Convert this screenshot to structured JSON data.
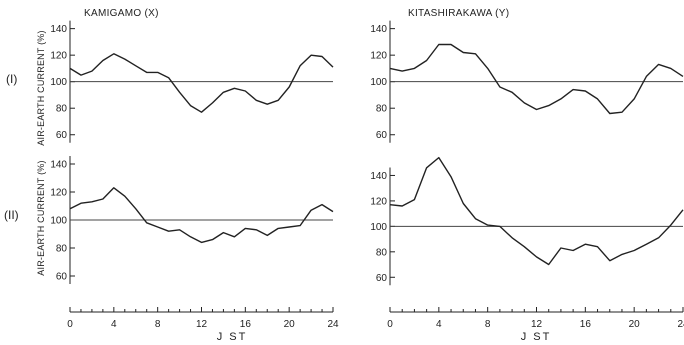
{
  "chart_data": [
    {
      "type": "line",
      "title": "KAMIGAMO (X)",
      "row_label": "(I)",
      "ylabel": "AIR-EARTH CURRENT (%)",
      "ylim": [
        50,
        145
      ],
      "yticks": [
        60,
        80,
        100,
        120,
        140
      ],
      "xlim": [
        0,
        24
      ],
      "reference_line": 100,
      "x": [
        0,
        1,
        2,
        3,
        4,
        5,
        6,
        7,
        8,
        9,
        10,
        11,
        12,
        13,
        14,
        15,
        16,
        17,
        18,
        19,
        20,
        21,
        22,
        23,
        24
      ],
      "values": [
        110,
        105,
        108,
        116,
        121,
        117,
        112,
        107,
        107,
        103,
        92,
        82,
        77,
        84,
        92,
        95,
        93,
        86,
        83,
        86,
        96,
        112,
        120,
        119,
        111
      ]
    },
    {
      "type": "line",
      "title": "KITASHIRAKAWA (Y)",
      "row_label": "(I)",
      "ylabel": "",
      "ylim": [
        50,
        145
      ],
      "yticks": [
        60,
        80,
        100,
        120,
        140
      ],
      "xlim": [
        0,
        24
      ],
      "reference_line": 100,
      "x": [
        0,
        1,
        2,
        3,
        4,
        5,
        6,
        7,
        8,
        9,
        10,
        11,
        12,
        13,
        14,
        15,
        16,
        17,
        18,
        19,
        20,
        21,
        22,
        23,
        24
      ],
      "values": [
        110,
        108,
        110,
        116,
        128,
        128,
        122,
        121,
        110,
        96,
        92,
        84,
        79,
        82,
        87,
        94,
        93,
        87,
        76,
        77,
        87,
        104,
        113,
        110,
        104
      ]
    },
    {
      "type": "line",
      "title": "",
      "row_label": "(II)",
      "ylabel": "AIR-EARTH CURRENT (%)",
      "ylim": [
        50,
        150
      ],
      "yticks": [
        60,
        80,
        100,
        120,
        140
      ],
      "xlim": [
        0,
        24
      ],
      "reference_line": 100,
      "x": [
        0,
        1,
        2,
        3,
        4,
        5,
        6,
        7,
        8,
        9,
        10,
        11,
        12,
        13,
        14,
        15,
        16,
        17,
        18,
        19,
        20,
        21,
        22,
        23,
        24
      ],
      "values": [
        108,
        112,
        113,
        115,
        123,
        117,
        108,
        98,
        95,
        92,
        93,
        88,
        84,
        86,
        91,
        88,
        94,
        93,
        89,
        94,
        95,
        96,
        107,
        111,
        106
      ]
    },
    {
      "type": "line",
      "title": "",
      "row_label": "(II)",
      "ylabel": "",
      "ylim": [
        50,
        160
      ],
      "yticks": [
        60,
        80,
        100,
        120,
        140
      ],
      "xlim": [
        0,
        24
      ],
      "reference_line": 100,
      "x": [
        0,
        1,
        2,
        3,
        4,
        5,
        6,
        7,
        8,
        9,
        10,
        11,
        12,
        13,
        14,
        15,
        16,
        17,
        18,
        19,
        20,
        21,
        22,
        23,
        24
      ],
      "values": [
        117,
        116,
        121,
        146,
        154,
        139,
        118,
        106,
        101,
        100,
        91,
        84,
        76,
        70,
        83,
        81,
        86,
        84,
        73,
        78,
        81,
        86,
        91,
        101,
        113
      ]
    }
  ],
  "x_axis": {
    "label": "J ST",
    "ticks": [
      0,
      4,
      8,
      12,
      16,
      20,
      24
    ],
    "tick_labels": [
      "0",
      "4",
      "8",
      "12",
      "16",
      "20",
      "24"
    ]
  },
  "colors": {
    "line": "#222222",
    "reference": "#444444"
  }
}
